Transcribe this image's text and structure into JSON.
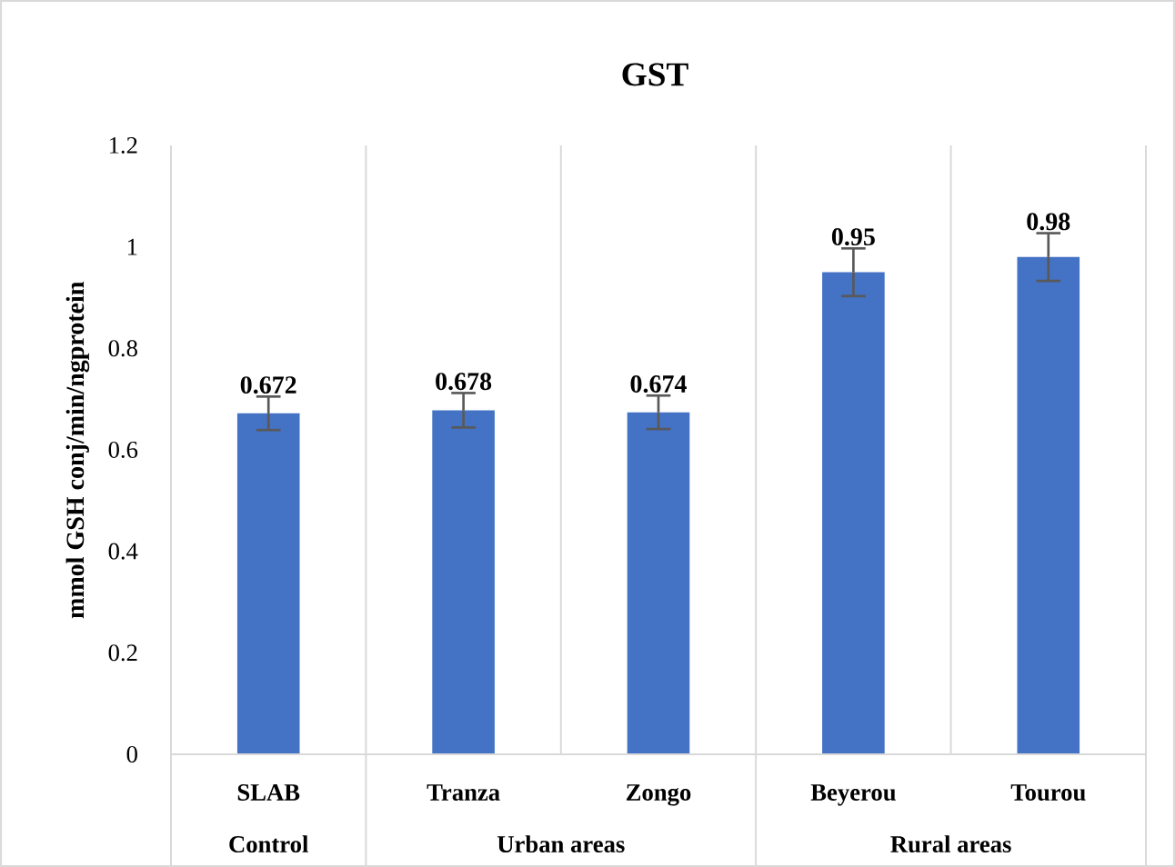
{
  "chart_data": {
    "type": "bar",
    "title": "GST",
    "ylabel": "mmol GSH conj/min/ngprotein",
    "categories": [
      "SLAB",
      "Tranza",
      "Zongo",
      "Beyerou",
      "Tourou"
    ],
    "values": [
      0.672,
      0.678,
      0.674,
      0.95,
      0.98
    ],
    "errors": [
      0.033,
      0.034,
      0.033,
      0.047,
      0.047
    ],
    "color": "#4472c4",
    "data_labels": true,
    "grid": "x",
    "ylim": [
      0,
      1.2
    ],
    "yticks": [
      0,
      0.2,
      0.4,
      0.6,
      0.8,
      1,
      1.2
    ],
    "annotations": [
      "Control",
      "Urban areas",
      "Rural areas"
    ]
  }
}
